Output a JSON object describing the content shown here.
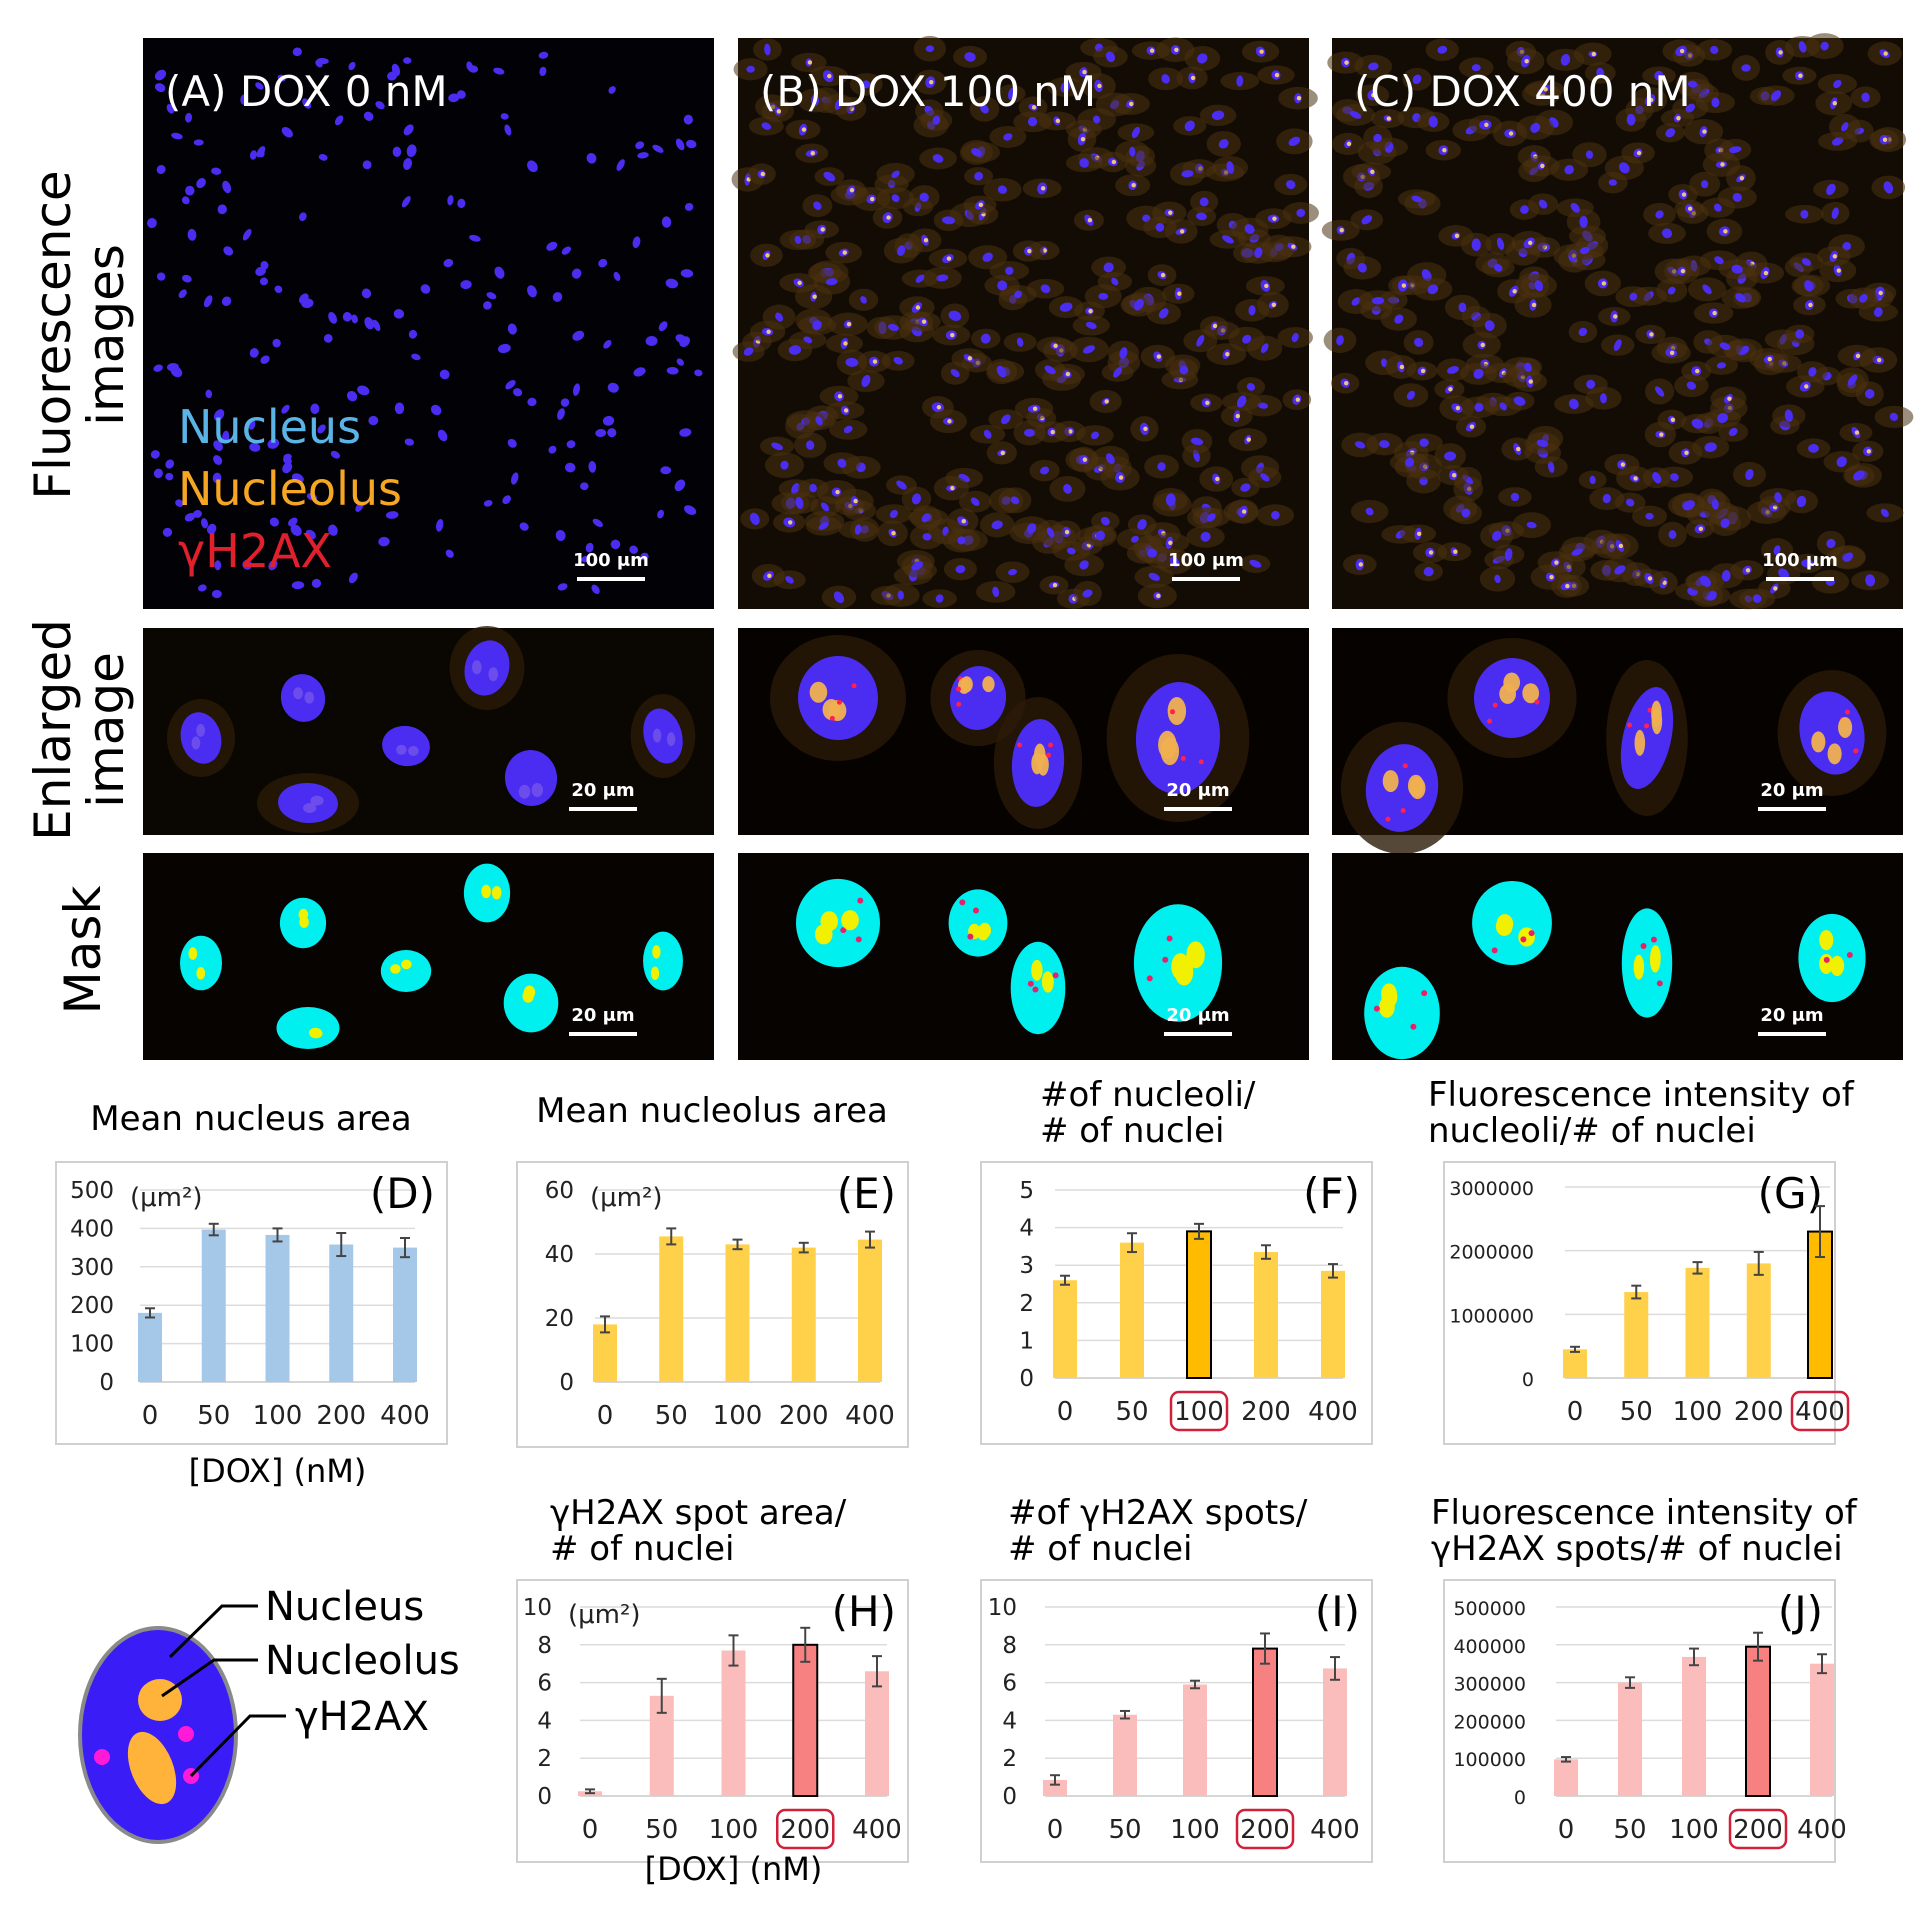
{
  "row_labels": [
    "Fluorescence images",
    "Enlarged image",
    "Mask"
  ],
  "panels": [
    {
      "label": "(A) DOX 0 nM",
      "scale_large": "100 μm",
      "scale_small": "20 μm"
    },
    {
      "label": "(B) DOX 100 nM",
      "scale_large": "100 μm",
      "scale_small": "20 μm"
    },
    {
      "label": "(C) DOX 400 nM",
      "scale_large": "100 μm",
      "scale_small": "20 μm"
    }
  ],
  "legend": [
    {
      "text": "Nucleus",
      "color": "#5ab4e6"
    },
    {
      "text": "Nucleolus",
      "color": "#f5a623"
    },
    {
      "text": "γH2AX",
      "color": "#e0202c"
    }
  ],
  "colors": {
    "nucleus_fluor": "#4a2df0",
    "nucleolus_fluor": "#f0b040",
    "mask_nucleus": "#00f0f0",
    "mask_nucleolus": "#f0f000",
    "bar_blue": "#a6c8e8",
    "bar_yellow": "#ffd04a",
    "bar_yellow_hi": "#ffbb00",
    "bar_pink": "#fbbcbc",
    "bar_pink_hi": "#f78080",
    "highlight_box": "#d0203a"
  },
  "xlabel_dox": "[DOX] (nM)",
  "chart_data": [
    {
      "letter": "(D)",
      "type": "bar",
      "title": [
        "Mean nucleus area"
      ],
      "unit": "(μm²)",
      "categories": [
        "0",
        "50",
        "100",
        "200",
        "400"
      ],
      "values": [
        180,
        397,
        383,
        358,
        350
      ],
      "errors": [
        12,
        15,
        17,
        30,
        25
      ],
      "ylim": [
        0,
        500
      ],
      "yticks": [
        0,
        100,
        200,
        300,
        400,
        500
      ],
      "highlight": -1,
      "color": "bar_blue",
      "xlabel": "[DOX] (nM)"
    },
    {
      "letter": "(E)",
      "type": "bar",
      "title": [
        "Mean nucleolus area"
      ],
      "unit": "(μm²)",
      "categories": [
        "0",
        "50",
        "100",
        "200",
        "400"
      ],
      "values": [
        18,
        45.5,
        43,
        42,
        44.5
      ],
      "errors": [
        2.5,
        2.5,
        1.5,
        1.5,
        2.5
      ],
      "ylim": [
        0,
        60
      ],
      "yticks": [
        0,
        20,
        40,
        60
      ],
      "highlight": -1,
      "color": "bar_yellow",
      "xlabel": ""
    },
    {
      "letter": "(F)",
      "type": "bar",
      "title": [
        "#of nucleoli/",
        "# of nuclei"
      ],
      "unit": "",
      "categories": [
        "0",
        "50",
        "100",
        "200",
        "400"
      ],
      "values": [
        2.6,
        3.6,
        3.9,
        3.35,
        2.85
      ],
      "errors": [
        0.12,
        0.25,
        0.2,
        0.18,
        0.18
      ],
      "ylim": [
        0,
        5
      ],
      "yticks": [
        0,
        1,
        2,
        3,
        4,
        5
      ],
      "highlight": 2,
      "color": "bar_yellow",
      "xlabel": ""
    },
    {
      "letter": "(G)",
      "type": "bar",
      "title": [
        "Fluorescence intensity of",
        "nucleoli/# of nuclei"
      ],
      "unit": "",
      "categories": [
        "0",
        "50",
        "100",
        "200",
        "400"
      ],
      "values": [
        450000,
        1350000,
        1730000,
        1800000,
        2300000
      ],
      "errors": [
        40000,
        100000,
        90000,
        180000,
        400000
      ],
      "ylim": [
        0,
        3000000
      ],
      "yticks": [
        0,
        1000000,
        2000000,
        3000000
      ],
      "highlight": 4,
      "color": "bar_yellow",
      "xlabel": ""
    },
    {
      "letter": "(H)",
      "type": "bar",
      "title": [
        "γH2AX spot area/",
        "# of nuclei"
      ],
      "unit": "(μm²)",
      "categories": [
        "0",
        "50",
        "100",
        "200",
        "400"
      ],
      "values": [
        0.25,
        5.3,
        7.7,
        8.0,
        6.6
      ],
      "errors": [
        0.1,
        0.9,
        0.8,
        0.9,
        0.8
      ],
      "ylim": [
        0,
        10
      ],
      "yticks": [
        0,
        2,
        4,
        6,
        8,
        10
      ],
      "highlight": 3,
      "color": "bar_pink",
      "xlabel": "[DOX] (nM)"
    },
    {
      "letter": "(I)",
      "type": "bar",
      "title": [
        "#of γH2AX spots/",
        "# of nuclei"
      ],
      "unit": "",
      "categories": [
        "0",
        "50",
        "100",
        "200",
        "400"
      ],
      "values": [
        0.85,
        4.3,
        5.9,
        7.8,
        6.75
      ],
      "errors": [
        0.25,
        0.2,
        0.2,
        0.8,
        0.6
      ],
      "ylim": [
        0,
        10
      ],
      "yticks": [
        0,
        2,
        4,
        6,
        8,
        10
      ],
      "highlight": 3,
      "color": "bar_pink",
      "xlabel": ""
    },
    {
      "letter": "(J)",
      "type": "bar",
      "title": [
        "Fluorescence intensity of",
        "γH2AX spots/# of nuclei"
      ],
      "unit": "",
      "categories": [
        "0",
        "50",
        "100",
        "200",
        "400"
      ],
      "values": [
        97000,
        300000,
        368000,
        395000,
        350000
      ],
      "errors": [
        6000,
        14000,
        22000,
        37000,
        25000
      ],
      "ylim": [
        0,
        500000
      ],
      "yticks": [
        0,
        100000,
        200000,
        300000,
        400000,
        500000
      ],
      "highlight": 3,
      "color": "bar_pink",
      "xlabel": ""
    }
  ],
  "diagram": {
    "labels": [
      "Nucleus",
      "Nucleolus",
      "γH2AX"
    ]
  }
}
